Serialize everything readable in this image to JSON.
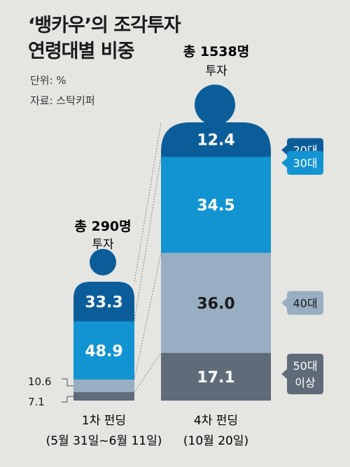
{
  "title_lines": [
    "‘뱅카우’의 조각투자",
    "연령대별 비중"
  ],
  "unit": "단위: %",
  "source": "자료: 스탁키퍼",
  "colors": {
    "20s": "#0b5d9a",
    "30s": "#1294d2",
    "40s": "#98aec2",
    "50s": "#5f6b78",
    "head": "#0b5d9a"
  },
  "chart_data": {
    "type": "stacked-bar",
    "categories": [
      "1차 펀딩",
      "4차 펀딩"
    ],
    "category_dates": [
      "(5월 31일~6월 11일)",
      "(10월 20일)"
    ],
    "totals": [
      "총 290명",
      "총 1538명"
    ],
    "total_suffix": "투자",
    "series": [
      {
        "name": "20대",
        "values": [
          33.3,
          12.4
        ]
      },
      {
        "name": "30대",
        "values": [
          48.9,
          34.5
        ]
      },
      {
        "name": "40대",
        "values": [
          10.6,
          36.0
        ]
      },
      {
        "name": "50대 이상",
        "values": [
          7.1,
          17.1
        ]
      }
    ],
    "value_labels": [
      [
        "33.3",
        "48.9",
        "10.6",
        "7.1"
      ],
      [
        "12.4",
        "34.5",
        "36.0",
        "17.1"
      ]
    ],
    "legend_tags": [
      "20대",
      "30대",
      "40대",
      "50대",
      "이상"
    ]
  }
}
